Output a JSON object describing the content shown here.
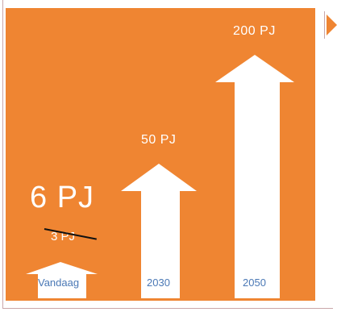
{
  "colors": {
    "panel": "#ef8532",
    "arrow": "#ffffff",
    "year_text": "#4a78b5",
    "strike": "#111111"
  },
  "labels": {
    "current_value": "6 PJ",
    "old_value": "3 PJ",
    "value_2030": "50 PJ",
    "value_2050": "200 PJ"
  },
  "years": {
    "today": "Vandaag",
    "y2030": "2030",
    "y2050": "2050"
  }
}
